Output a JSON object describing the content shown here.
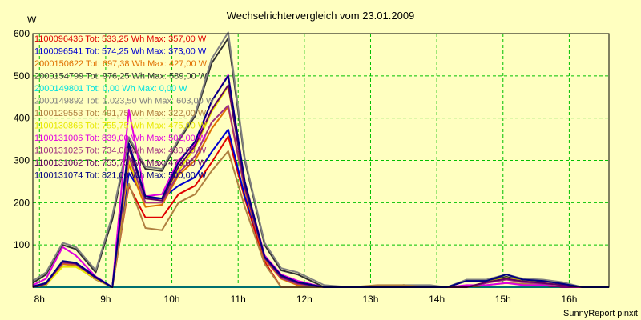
{
  "chart_data": {
    "type": "line",
    "title": "Wechselrichtervergleich vom 23.01.2009",
    "ylabel": "W",
    "xlabel": "",
    "ylim": [
      0,
      600
    ],
    "xlim": [
      7.9,
      16.6
    ],
    "grid": true,
    "legend_position": "top-left",
    "footer": "SunnyReport pinxit",
    "yticks": [
      100,
      200,
      300,
      400,
      500,
      600
    ],
    "xticks": [
      {
        "t": 8,
        "label": "8h"
      },
      {
        "t": 9,
        "label": "9h"
      },
      {
        "t": 10,
        "label": "10h"
      },
      {
        "t": 11,
        "label": "11h"
      },
      {
        "t": 12,
        "label": "12h"
      },
      {
        "t": 13,
        "label": "13h"
      },
      {
        "t": 14,
        "label": "14h"
      },
      {
        "t": 15,
        "label": "15h"
      },
      {
        "t": 16,
        "label": "16h"
      }
    ],
    "x": [
      7.9,
      8.1,
      8.35,
      8.55,
      8.85,
      9.1,
      9.35,
      9.6,
      9.85,
      10.1,
      10.35,
      10.6,
      10.85,
      11.1,
      11.4,
      11.65,
      11.9,
      12.3,
      12.7,
      13.1,
      13.5,
      13.9,
      14.15,
      14.45,
      14.75,
      15.05,
      15.3,
      15.6,
      15.9,
      16.2,
      16.6
    ],
    "series": [
      {
        "name": "1100096436",
        "legend": "1100096436 Tot: 533,25 Wh Max: 357,00 W",
        "color": "#e00000",
        "values": [
          0,
          5,
          55,
          55,
          20,
          0,
          240,
          165,
          165,
          220,
          240,
          295,
          357,
          210,
          60,
          0,
          0,
          0,
          0,
          0,
          0,
          0,
          0,
          0,
          0,
          0,
          0,
          0,
          0,
          0,
          0
        ]
      },
      {
        "name": "1100096541",
        "legend": "1100096541 Tot: 574,25 Wh Max: 373,00 W",
        "color": "#0000d0",
        "values": [
          0,
          10,
          60,
          58,
          25,
          0,
          270,
          210,
          210,
          240,
          260,
          320,
          373,
          215,
          75,
          25,
          10,
          0,
          0,
          0,
          0,
          0,
          0,
          0,
          0,
          0,
          0,
          0,
          0,
          0,
          0
        ]
      },
      {
        "name": "2000150622",
        "legend": "2000150622 Tot: 697,38 Wh Max: 427,00 W",
        "color": "#e07000",
        "values": [
          0,
          8,
          55,
          52,
          22,
          0,
          290,
          190,
          195,
          265,
          300,
          375,
          427,
          230,
          65,
          20,
          5,
          0,
          0,
          0,
          0,
          0,
          0,
          0,
          10,
          20,
          15,
          10,
          5,
          0,
          0
        ]
      },
      {
        "name": "2000154799",
        "legend": "2000154799 Tot: 976,25 Wh Max: 589,00 W",
        "color": "#303030",
        "values": [
          10,
          30,
          100,
          90,
          35,
          160,
          350,
          280,
          275,
          345,
          405,
          530,
          589,
          300,
          100,
          40,
          30,
          0,
          0,
          0,
          5,
          0,
          0,
          15,
          15,
          25,
          15,
          15,
          10,
          0,
          0
        ]
      },
      {
        "name": "2000149801",
        "legend": "2000149801 Tot: 0,00 Wh Max: 0,00 W",
        "color": "#00e0e0",
        "values": [
          0,
          0,
          0,
          0,
          0,
          0,
          0,
          0,
          0,
          0,
          0,
          0,
          0,
          0,
          0,
          0,
          0,
          0,
          0,
          0,
          0,
          0,
          0,
          0,
          0,
          0,
          0,
          0,
          0,
          0,
          0
        ]
      },
      {
        "name": "2000149892",
        "legend": "2000149892 Tot: 1.023,50 Wh Max: 603,00 W",
        "color": "#808080",
        "values": [
          15,
          35,
          105,
          95,
          40,
          170,
          355,
          285,
          280,
          350,
          410,
          540,
          603,
          305,
          105,
          45,
          35,
          5,
          0,
          0,
          5,
          5,
          0,
          18,
          18,
          30,
          20,
          18,
          12,
          0,
          0
        ]
      },
      {
        "name": "1100129553",
        "legend": "1100129553 Tot: 491,75 Wh Max: 322,00 W",
        "color": "#b08040",
        "values": [
          0,
          5,
          50,
          50,
          18,
          0,
          245,
          140,
          135,
          200,
          220,
          275,
          322,
          190,
          55,
          0,
          0,
          0,
          0,
          5,
          5,
          0,
          0,
          0,
          5,
          10,
          8,
          5,
          0,
          0,
          0
        ]
      },
      {
        "name": "1100130866",
        "legend": "1100130866 Tot: 755,75 Wh Max: 475,00 W",
        "color": "#e8e800",
        "values": [
          0,
          6,
          48,
          48,
          20,
          0,
          300,
          200,
          200,
          275,
          330,
          415,
          475,
          245,
          70,
          25,
          10,
          0,
          0,
          0,
          0,
          0,
          0,
          0,
          12,
          22,
          15,
          10,
          5,
          0,
          0
        ]
      },
      {
        "name": "1100131006",
        "legend": "1100131006 Tot: 839,00 Wh Max: 502,00 W",
        "color": "#e000e0",
        "values": [
          5,
          20,
          95,
          75,
          25,
          0,
          420,
          215,
          220,
          300,
          340,
          440,
          502,
          250,
          75,
          30,
          15,
          0,
          0,
          0,
          0,
          0,
          0,
          5,
          5,
          10,
          5,
          5,
          0,
          0,
          0
        ]
      },
      {
        "name": "1100131025",
        "legend": "1100131025 Tot: 734,00 Wh Max: 430,00 W",
        "color": "#a03080",
        "values": [
          0,
          8,
          58,
          55,
          22,
          0,
          310,
          200,
          200,
          270,
          310,
          390,
          430,
          235,
          68,
          22,
          8,
          0,
          0,
          0,
          0,
          0,
          0,
          0,
          10,
          18,
          12,
          8,
          5,
          0,
          0
        ]
      },
      {
        "name": "1100131062",
        "legend": "1100131062 Tot: 755,75 Wh Max: 478,00 W",
        "color": "#600060",
        "values": [
          0,
          8,
          60,
          56,
          22,
          0,
          330,
          210,
          205,
          285,
          335,
          420,
          478,
          240,
          70,
          25,
          10,
          0,
          0,
          0,
          0,
          0,
          0,
          0,
          12,
          20,
          14,
          10,
          5,
          0,
          0
        ]
      },
      {
        "name": "1100131074",
        "legend": "1100131074 Tot: 821,00 Wh Max: 500,00 W",
        "color": "#000080",
        "values": [
          2,
          10,
          62,
          58,
          24,
          0,
          340,
          215,
          210,
          295,
          345,
          440,
          500,
          250,
          72,
          28,
          12,
          0,
          0,
          0,
          0,
          0,
          0,
          15,
          15,
          30,
          18,
          15,
          8,
          0,
          0
        ]
      }
    ]
  }
}
